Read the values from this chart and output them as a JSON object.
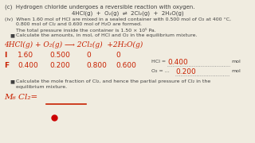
{
  "bg_color": "#f0ece0",
  "title_c": "(c)  Hydrogen chloride undergoes a reversible reaction with oxygen.",
  "equation_printed": "4HCl(g)  +  O₂(g)  ⇌  2Cl₂(g)  +  2H₂O(g)",
  "iv_text1": "(iv)  When 1.60 mol of HCl are mixed in a sealed container with 0.500 mol of O₂ at 400 °C,",
  "iv_text2": "       0.800 mol of Cl₂ and 0.600 mol of H₂O are formed.",
  "pressure_text": "       The total pressure inside the container is 1.50 × 10⁵ Pa.",
  "bullet1": "Calculate the amounts, in mol, of HCl and O₂ in the equilibrium mixture.",
  "handwritten_eq": "4HCl(g) + O₂(g) ⟶ 2Cl₂(g)  +2H₂O(g)",
  "row_I_label": "I",
  "row_F_label": "F",
  "I_vals": [
    "1.60",
    "0.500",
    "0",
    "0"
  ],
  "F_vals": [
    "0.400",
    "0.200",
    "0.800",
    "0.600"
  ],
  "HCl_label": "HCl = ",
  "HCl_answer": "0.400",
  "O2_label": "O₂ = ...",
  "O2_answer": "0.200",
  "mol": "mol",
  "bullet2_1": "Calculate the mole fraction of Cl₂, and hence the partial pressure of Cl₂ in the",
  "bullet2_2": "equilibrium mixture.",
  "MF_label": "M₆ Cl₂=",
  "hand_color": "#c82000",
  "print_color": "#404040",
  "dot_color": "#cc0000"
}
